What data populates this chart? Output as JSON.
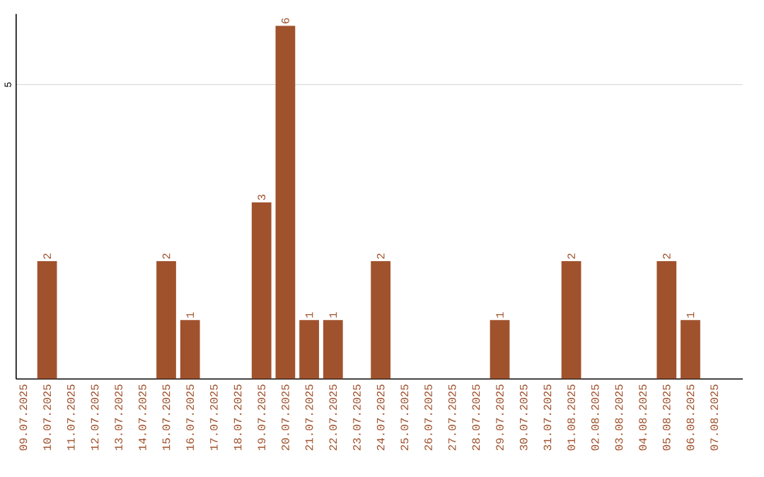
{
  "chart_data": {
    "type": "bar",
    "categories": [
      "09.07.2025",
      "10.07.2025",
      "11.07.2025",
      "12.07.2025",
      "13.07.2025",
      "14.07.2025",
      "15.07.2025",
      "16.07.2025",
      "17.07.2025",
      "18.07.2025",
      "19.07.2025",
      "20.07.2025",
      "21.07.2025",
      "22.07.2025",
      "23.07.2025",
      "24.07.2025",
      "25.07.2025",
      "26.07.2025",
      "27.07.2025",
      "28.07.2025",
      "29.07.2025",
      "30.07.2025",
      "31.07.2025",
      "01.08.2025",
      "02.08.2025",
      "03.08.2025",
      "04.08.2025",
      "05.08.2025",
      "06.08.2025",
      "07.08.2025"
    ],
    "values": [
      0,
      2,
      0,
      0,
      0,
      0,
      2,
      1,
      0,
      0,
      3,
      6,
      1,
      1,
      0,
      2,
      0,
      0,
      0,
      0,
      1,
      0,
      0,
      2,
      0,
      0,
      0,
      2,
      1,
      0
    ],
    "value_labels": [
      null,
      "2",
      null,
      null,
      null,
      null,
      "2",
      "1",
      null,
      null,
      "3",
      "6",
      "1",
      "1",
      null,
      "2",
      null,
      null,
      null,
      null,
      "1",
      null,
      null,
      "2",
      null,
      null,
      null,
      "2",
      "1",
      null
    ],
    "color": "#a0522d",
    "ylim": [
      0,
      6.2
    ],
    "yticks": [
      5
    ],
    "grid": "y"
  }
}
